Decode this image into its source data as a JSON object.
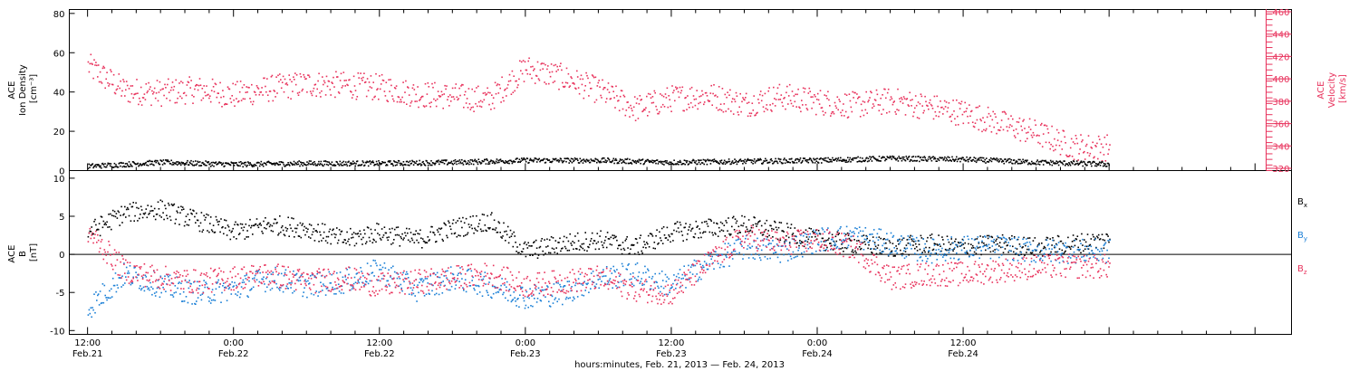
{
  "chart_data": [
    {
      "type": "scatter",
      "panel": "top",
      "ylabel_lines": [
        "ACE",
        "Ion Density",
        "[cm⁻³]"
      ],
      "ylim": [
        0,
        82
      ],
      "yticks": [
        0,
        20,
        40,
        60,
        80
      ],
      "y2label_lines": [
        "ACE",
        "Velocity",
        "[km/s]"
      ],
      "y2lim": [
        318,
        462
      ],
      "y2ticks": [
        320,
        340,
        360,
        380,
        400,
        420,
        440,
        460
      ],
      "series": [
        {
          "axis": "left",
          "color": "#000000",
          "x_hours": [
            0,
            6,
            12,
            18,
            24,
            30,
            36,
            42,
            48,
            54,
            60,
            66,
            72,
            78,
            84
          ],
          "values": [
            2.5,
            4.5,
            3.5,
            4.0,
            4.0,
            4.5,
            5.5,
            5.5,
            4.5,
            5.0,
            5.5,
            6.5,
            6.0,
            4.5,
            3.5
          ]
        },
        {
          "axis": "right",
          "color": "#e8325c",
          "x_hours": [
            0,
            3,
            6,
            9,
            12,
            15,
            18,
            21,
            24,
            27,
            30,
            33,
            36,
            39,
            42,
            45,
            48,
            51,
            54,
            57,
            60,
            63,
            66,
            69,
            72,
            75,
            78,
            81,
            84
          ],
          "values": [
            412,
            390,
            388,
            391,
            386,
            392,
            396,
            395,
            393,
            387,
            385,
            382,
            410,
            402,
            390,
            374,
            383,
            386,
            378,
            385,
            380,
            377,
            381,
            376,
            370,
            361,
            352,
            340,
            339
          ]
        }
      ]
    },
    {
      "type": "scatter",
      "panel": "bottom",
      "ylabel_lines": [
        "ACE",
        "B",
        "[nT]"
      ],
      "ylim": [
        -10.5,
        11
      ],
      "yticks": [
        -10,
        -5,
        0,
        5,
        10
      ],
      "legend": [
        "Bx",
        "By",
        "Bz"
      ],
      "series": [
        {
          "name": "Bx",
          "color": "#000000",
          "x_hours": [
            0,
            3,
            6,
            9,
            12,
            15,
            18,
            21,
            24,
            27,
            30,
            33,
            36,
            39,
            42,
            45,
            48,
            51,
            54,
            57,
            60,
            63,
            66,
            69,
            72,
            75,
            78,
            81,
            84
          ],
          "values": [
            3.0,
            5.5,
            6.0,
            4.5,
            3.0,
            4.0,
            3.5,
            2.0,
            3.0,
            2.0,
            3.5,
            4.5,
            0.5,
            1.5,
            2.0,
            1.0,
            3.0,
            3.5,
            4.0,
            3.0,
            2.0,
            1.5,
            1.0,
            1.5,
            1.0,
            1.5,
            1.0,
            1.5,
            2.0
          ]
        },
        {
          "name": "By",
          "color": "#1a7fd6",
          "x_hours": [
            0,
            3,
            6,
            9,
            12,
            15,
            18,
            21,
            24,
            27,
            30,
            33,
            36,
            39,
            42,
            45,
            48,
            51,
            54,
            57,
            60,
            63,
            66,
            69,
            72,
            75,
            78,
            81,
            84
          ],
          "values": [
            -7.0,
            -2.5,
            -4.0,
            -5.0,
            -4.5,
            -3.0,
            -4.0,
            -3.5,
            -2.0,
            -4.5,
            -3.0,
            -4.0,
            -5.5,
            -5.0,
            -3.0,
            -2.5,
            -4.0,
            -1.0,
            1.0,
            0.5,
            2.0,
            2.5,
            1.5,
            0.5,
            1.0,
            1.0,
            0.5,
            0.5,
            0.5
          ]
        },
        {
          "name": "Bz",
          "color": "#e8325c",
          "x_hours": [
            0,
            3,
            6,
            9,
            12,
            15,
            18,
            21,
            24,
            27,
            30,
            33,
            36,
            39,
            42,
            45,
            48,
            51,
            54,
            57,
            60,
            63,
            66,
            69,
            72,
            75,
            78,
            81,
            84
          ],
          "values": [
            3.0,
            -2.0,
            -3.0,
            -3.5,
            -3.0,
            -2.5,
            -3.5,
            -3.0,
            -4.0,
            -3.5,
            -3.0,
            -2.5,
            -4.0,
            -3.5,
            -3.0,
            -4.5,
            -5.0,
            -1.0,
            2.5,
            1.5,
            2.0,
            1.0,
            -3.0,
            -2.5,
            -2.5,
            -2.0,
            -1.5,
            -1.5,
            -1.5
          ]
        }
      ]
    }
  ],
  "time_axis": {
    "xlim_hours": [
      -1.5,
      99
    ],
    "ticks": [
      {
        "hours": 0,
        "time": "12:00",
        "date": "Feb.21"
      },
      {
        "hours": 12,
        "time": "0:00",
        "date": "Feb.22"
      },
      {
        "hours": 24,
        "time": "12:00",
        "date": "Feb.22"
      },
      {
        "hours": 36,
        "time": "0:00",
        "date": "Feb.23"
      },
      {
        "hours": 48,
        "time": "12:00",
        "date": "Feb.23"
      },
      {
        "hours": 60,
        "time": "0:00",
        "date": "Feb.24"
      },
      {
        "hours": 72,
        "time": "12:00",
        "date": "Feb.24"
      }
    ],
    "title": "hours:minutes, Feb. 21, 2013 — Feb. 24, 2013"
  }
}
